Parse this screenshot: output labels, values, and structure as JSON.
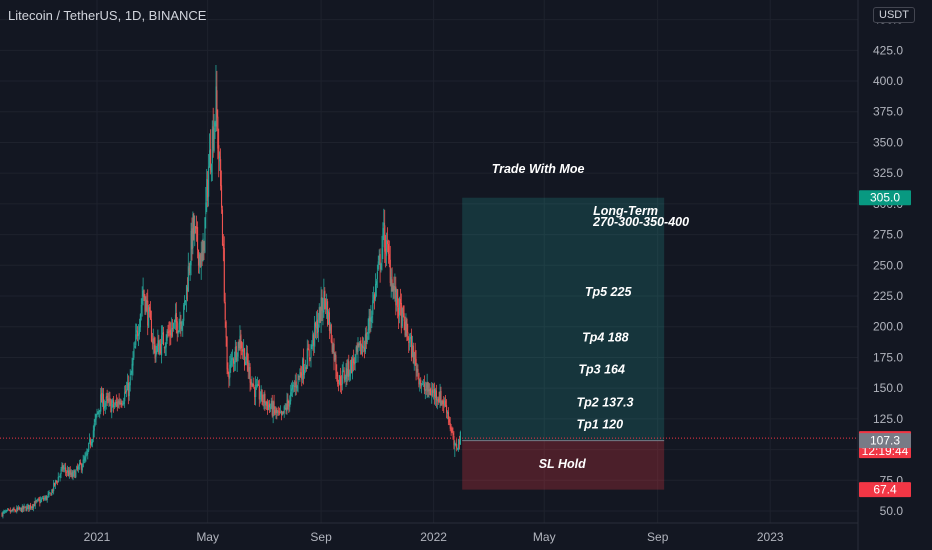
{
  "header": {
    "title": "Litecoin / TetherUS, 1D, BINANCE",
    "currency": "USDT"
  },
  "chart_data": {
    "type": "candlestick",
    "symbol": "Litecoin / TetherUS",
    "interval": "1D",
    "exchange": "BINANCE",
    "y_axis": {
      "min": 50,
      "max": 450,
      "ticks": [
        50,
        75,
        100,
        125,
        150,
        175,
        200,
        225,
        250,
        275,
        300,
        325,
        350,
        375,
        400,
        425,
        450
      ],
      "tick_labels": [
        "50.0",
        "75.0",
        "100.0",
        "125.0",
        "150.0",
        "175.0",
        "200.0",
        "225.0",
        "250.0",
        "275.0",
        "300.0",
        "325.0",
        "350.0",
        "375.0",
        "400.0",
        "425.0",
        "450.0"
      ]
    },
    "x_axis": {
      "ticks": [
        {
          "label": "2021",
          "date": "2021-01-01"
        },
        {
          "label": "May",
          "date": "2021-05-01"
        },
        {
          "label": "Sep",
          "date": "2021-09-01"
        },
        {
          "label": "2022",
          "date": "2022-01-01"
        },
        {
          "label": "May",
          "date": "2022-05-01"
        },
        {
          "label": "Sep",
          "date": "2022-09-01"
        },
        {
          "label": "2023",
          "date": "2023-01-01"
        }
      ]
    },
    "price_path": [
      [
        "2020-09-20",
        48
      ],
      [
        "2020-10-15",
        52
      ],
      [
        "2020-11-10",
        62
      ],
      [
        "2020-11-25",
        85
      ],
      [
        "2020-12-05",
        78
      ],
      [
        "2020-12-20",
        92
      ],
      [
        "2021-01-05",
        140
      ],
      [
        "2021-01-20",
        135
      ],
      [
        "2021-02-05",
        150
      ],
      [
        "2021-02-20",
        230
      ],
      [
        "2021-03-05",
        180
      ],
      [
        "2021-03-20",
        195
      ],
      [
        "2021-04-05",
        210
      ],
      [
        "2021-04-15",
        280
      ],
      [
        "2021-04-25",
        250
      ],
      [
        "2021-05-02",
        330
      ],
      [
        "2021-05-10",
        380
      ],
      [
        "2021-05-16",
        300
      ],
      [
        "2021-05-22",
        160
      ],
      [
        "2021-06-05",
        190
      ],
      [
        "2021-06-20",
        150
      ],
      [
        "2021-07-01",
        140
      ],
      [
        "2021-07-20",
        125
      ],
      [
        "2021-08-05",
        155
      ],
      [
        "2021-08-20",
        180
      ],
      [
        "2021-09-05",
        225
      ],
      [
        "2021-09-20",
        155
      ],
      [
        "2021-10-05",
        170
      ],
      [
        "2021-10-20",
        190
      ],
      [
        "2021-11-01",
        240
      ],
      [
        "2021-11-08",
        275
      ],
      [
        "2021-11-20",
        225
      ],
      [
        "2021-12-05",
        190
      ],
      [
        "2021-12-20",
        150
      ],
      [
        "2022-01-05",
        145
      ],
      [
        "2022-01-15",
        135
      ],
      [
        "2022-01-24",
        100
      ],
      [
        "2022-01-30",
        109.3
      ]
    ],
    "position": {
      "entry": 107.3,
      "target": 305.0,
      "stop": 67.4,
      "start": "2022-02-01",
      "end": "2022-09-08"
    },
    "price_labels": [
      {
        "price": 305.0,
        "text": "305.0",
        "color": "#089981"
      },
      {
        "price": 109.3,
        "text": "109.3",
        "sub": "12:19:44",
        "color": "#f23645"
      },
      {
        "price": 107.3,
        "text": "107.3",
        "color": "#787b86"
      },
      {
        "price": 67.4,
        "text": "67.4",
        "color": "#f23645"
      }
    ],
    "annotations": [
      {
        "text": "Trade With Moe",
        "price": 325,
        "date": "2022-03-05"
      },
      {
        "text": "Long-Term",
        "price": 291,
        "date": "2022-06-23"
      },
      {
        "text": "270-300-350-400",
        "price": 282,
        "date": "2022-06-23"
      },
      {
        "text": "Tp5 225",
        "price": 225,
        "date": "2022-06-14"
      },
      {
        "text": "Tp4 188",
        "price": 188,
        "date": "2022-06-11"
      },
      {
        "text": "Tp3 164",
        "price": 162,
        "date": "2022-06-07"
      },
      {
        "text": "Tp2 137.3",
        "price": 135,
        "date": "2022-06-05"
      },
      {
        "text": "Tp1 120",
        "price": 117,
        "date": "2022-06-05"
      },
      {
        "text": "SL Hold",
        "price": 85,
        "date": "2022-04-25"
      }
    ]
  }
}
